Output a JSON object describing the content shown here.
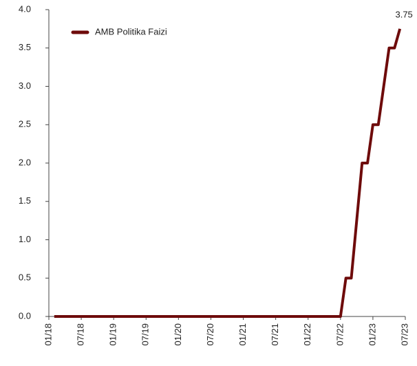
{
  "chart_data": {
    "type": "line",
    "categories": [
      "01/18",
      null,
      null,
      null,
      null,
      null,
      "07/18",
      null,
      null,
      null,
      null,
      null,
      "01/19",
      null,
      null,
      null,
      null,
      null,
      "07/19",
      null,
      null,
      null,
      null,
      null,
      "01/20",
      null,
      null,
      null,
      null,
      null,
      "07/20",
      null,
      null,
      null,
      null,
      null,
      "01/21",
      null,
      null,
      null,
      null,
      null,
      "07/21",
      null,
      null,
      null,
      null,
      null,
      "01/22",
      null,
      null,
      null,
      null,
      null,
      "07/22",
      null,
      null,
      null,
      null,
      null,
      "01/23",
      null,
      null,
      null,
      null,
      null,
      "07/23"
    ],
    "series": [
      {
        "name": "AMB Politika Faizi",
        "color": "#6e0b0b",
        "values": [
          null,
          0,
          0,
          0,
          0,
          0,
          0,
          0,
          0,
          0,
          0,
          0,
          0,
          0,
          0,
          0,
          0,
          0,
          0,
          0,
          0,
          0,
          0,
          0,
          0,
          0,
          0,
          0,
          0,
          0,
          0,
          0,
          0,
          0,
          0,
          0,
          0,
          0,
          0,
          0,
          0,
          0,
          0,
          0,
          0,
          0,
          0,
          0,
          0,
          0,
          0,
          0,
          0,
          0,
          0,
          0.5,
          0.5,
          1.25,
          2.0,
          2.0,
          2.5,
          2.5,
          3.0,
          3.5,
          3.5,
          3.75,
          null
        ]
      }
    ],
    "annotations": [
      {
        "text": "3.75"
      }
    ],
    "ylim": [
      0,
      4
    ],
    "yticks": [
      {
        "value": 0,
        "label": "0.0"
      },
      0.5,
      {
        "value": 1,
        "label": "1.0"
      },
      1.5,
      {
        "value": 2,
        "label": "2.0"
      },
      2.5,
      {
        "value": 3,
        "label": "3.0"
      },
      3.5,
      {
        "value": 4,
        "label": "4.0"
      }
    ],
    "legend": "upper left"
  }
}
